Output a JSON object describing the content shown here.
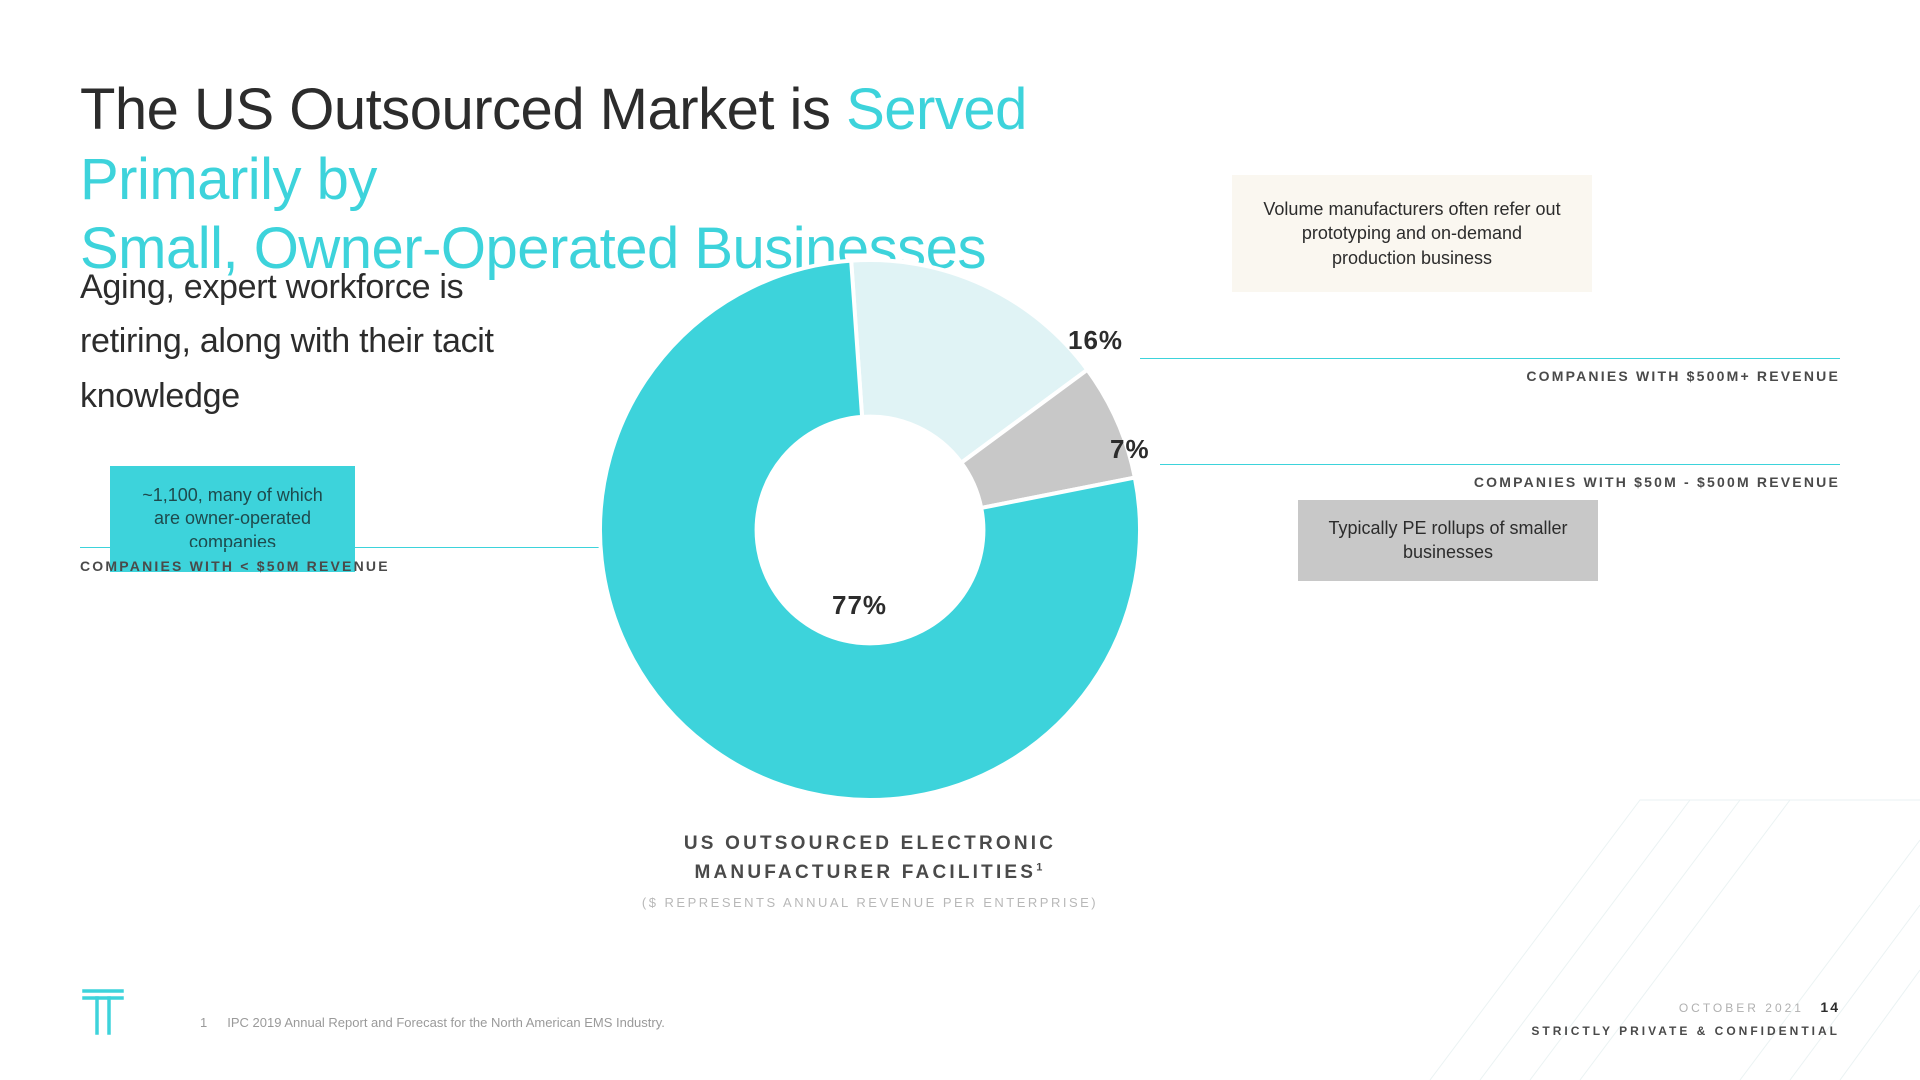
{
  "title": {
    "part1_dark": "The US Outsourced Market is ",
    "part1_teal": "Served Primarily by",
    "part2_teal": "Small, Owner-Operated Businesses"
  },
  "subtitle": "Aging, expert workforce is retiring, along with their tacit knowledge",
  "donut": {
    "type": "donut",
    "slices": [
      {
        "key": "large",
        "value": 16,
        "label": "16%",
        "color": "#e0f3f5",
        "category": "COMPANIES WITH $500M+ REVENUE",
        "callout": "Volume manufacturers often refer out prototyping and on-demand production business"
      },
      {
        "key": "mid",
        "value": 7,
        "label": "7%",
        "color": "#c8c8c8",
        "category": "COMPANIES WITH $50M - $500M REVENUE",
        "callout": "Typically PE rollups of smaller businesses"
      },
      {
        "key": "small",
        "value": 77,
        "label": "77%",
        "color": "#3dd3db",
        "category": "COMPANIES WITH < $50M REVENUE",
        "callout": "~1,100, many of which are owner-operated companies"
      }
    ],
    "inner_radius_ratio": 0.42,
    "start_angle_deg": -4,
    "background_color": "#ffffff",
    "title": "US OUTSOURCED ELECTRONIC MANUFACTURER FACILITIES",
    "title_footnote_marker": "1",
    "subtitle": "($ REPRESENTS ANNUAL REVENUE PER ENTERPRISE)"
  },
  "colors": {
    "teal": "#3dd3db",
    "pale_teal": "#e0f3f5",
    "grey": "#c8c8c8",
    "dark_text": "#2c2c2c",
    "cream": "#faf7f0",
    "rule": "#3dd3db"
  },
  "footnote": {
    "num": "1",
    "text": "IPC 2019 Annual Report and Forecast for the North American EMS Industry."
  },
  "footer": {
    "date": "OCTOBER 2021",
    "page": "14",
    "confidential": "STRICTLY PRIVATE & CONFIDENTIAL"
  }
}
